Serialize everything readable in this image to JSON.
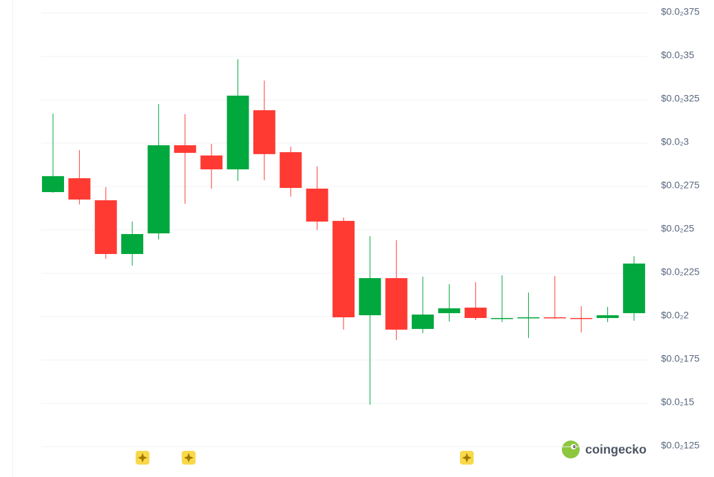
{
  "chart_data": {
    "type": "candlestick",
    "up_color": "#00a83e",
    "down_color": "#ff3a33",
    "grid": true,
    "brand": "coingecko",
    "open": [
      0.002718,
      0.002798,
      0.002671,
      0.002361,
      0.00248,
      0.002988,
      0.002929,
      0.002849,
      0.00319,
      0.002948,
      0.002738,
      0.002552,
      0.002008,
      0.002222,
      0.001929,
      0.00202,
      0.002052,
      0.001988,
      0.001992,
      0.001996,
      0.001992,
      0.001992,
      0.00202
    ],
    "high": [
      0.003171,
      0.00296,
      0.002746,
      0.002548,
      0.003226,
      0.003167,
      0.002996,
      0.003484,
      0.003361,
      0.00298,
      0.002865,
      0.002572,
      0.002464,
      0.002441,
      0.00223,
      0.002187,
      0.002199,
      0.002238,
      0.002139,
      0.002234,
      0.00206,
      0.002056,
      0.002349
    ],
    "low": [
      0.002714,
      0.002647,
      0.002333,
      0.002294,
      0.002445,
      0.002651,
      0.002738,
      0.002782,
      0.002786,
      0.002691,
      0.0025,
      0.001925,
      0.001492,
      0.001865,
      0.001905,
      0.001972,
      0.00198,
      0.001968,
      0.001877,
      0.001988,
      0.001909,
      0.001968,
      0.001976
    ],
    "close": [
      0.00281,
      0.002675,
      0.002361,
      0.002476,
      0.002988,
      0.002944,
      0.002849,
      0.003274,
      0.002937,
      0.002742,
      0.002548,
      0.001996,
      0.002222,
      0.001925,
      0.002012,
      0.002048,
      0.001992,
      0.001992,
      0.001996,
      0.001992,
      0.001988,
      0.002008,
      0.002306
    ],
    "ylim": [
      0.00125,
      0.00375
    ],
    "yticks": [
      {
        "value": 0.00125,
        "label": "$0.0₂125"
      },
      {
        "value": 0.0015,
        "label": "$0.0₂15"
      },
      {
        "value": 0.00175,
        "label": "$0.0₂175"
      },
      {
        "value": 0.002,
        "label": "$0.0₂2"
      },
      {
        "value": 0.00225,
        "label": "$0.0₂225"
      },
      {
        "value": 0.0025,
        "label": "$0.0₂25"
      },
      {
        "value": 0.00275,
        "label": "$0.0₂275"
      },
      {
        "value": 0.003,
        "label": "$0.0₂3"
      },
      {
        "value": 0.00325,
        "label": "$0.0₂325"
      },
      {
        "value": 0.0035,
        "label": "$0.0₂35"
      },
      {
        "value": 0.00375,
        "label": "$0.0₂375"
      }
    ]
  }
}
